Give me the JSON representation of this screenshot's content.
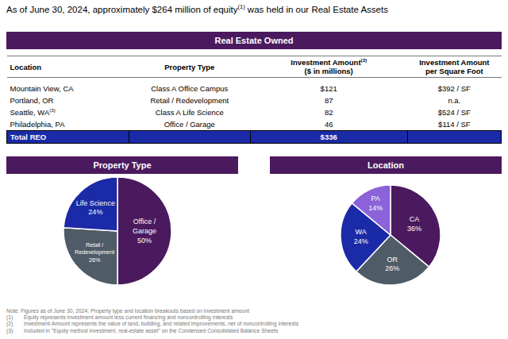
{
  "header": {
    "text": "As of June 30, 2024, approximately $264 million of equity",
    "sup": "(1)",
    "text_after": " was held in our Real Estate Assets"
  },
  "table": {
    "title": "Real Estate Owned",
    "columns": [
      {
        "lines": [
          "Location"
        ]
      },
      {
        "lines": [
          "Property Type"
        ]
      },
      {
        "lines": [
          "Investment Amount",
          "($ in millions)"
        ],
        "sup": "(2)"
      },
      {
        "lines": [
          "Investment Amount",
          "per Square Foot"
        ]
      }
    ],
    "rows": [
      [
        "Mountain View, CA",
        "Class A Office Campus",
        "$121",
        "$392 / SF"
      ],
      [
        "Portland, OR",
        "Retail / Redevelopment",
        "87",
        "n.a."
      ],
      [
        {
          "text": "Seattle, WA",
          "sup": "(3)"
        },
        "Class A Life Science",
        "82",
        "$524 / SF"
      ],
      [
        "Philadelphia, PA",
        "Office / Garage",
        "46",
        "$114 / SF"
      ]
    ],
    "total": {
      "label": "Total REO",
      "amount": "$336"
    }
  },
  "chart_data": [
    {
      "type": "pie",
      "title": "Property Type",
      "categories": [
        "Office / Garage",
        "Retail / Redevelopment",
        "Life Science"
      ],
      "values": [
        50,
        26,
        24
      ],
      "value_labels": [
        "50%",
        "26%",
        "24%"
      ],
      "colors": [
        "#4b1a5e",
        "#4f5b66",
        "#1b2aa6"
      ],
      "data_labels": true
    },
    {
      "type": "pie",
      "title": "Location",
      "categories": [
        "CA",
        "OR",
        "WA",
        "PA"
      ],
      "values": [
        36,
        26,
        24,
        14
      ],
      "value_labels": [
        "36%",
        "26%",
        "24%",
        "14%"
      ],
      "colors": [
        "#4b1a5e",
        "#4f5b66",
        "#1b2aa6",
        "#8b62d9"
      ],
      "data_labels": true
    }
  ],
  "notes": {
    "note": "Note: Figures as of June 30, 2024. Property type and location breakouts based on investment amount",
    "footnotes": [
      {
        "marker": "(1)",
        "text": "Equity represents investment amount less current financing and noncontrolling interests"
      },
      {
        "marker": "(2)",
        "text": "Investment Amount represents the value of land, building, and related improvements, net of noncontrolling interests"
      },
      {
        "marker": "(3)",
        "text": "Included in \"Equity method investment, real-estate asset\" on the Condensed Consolidated Balance Sheets"
      }
    ]
  }
}
